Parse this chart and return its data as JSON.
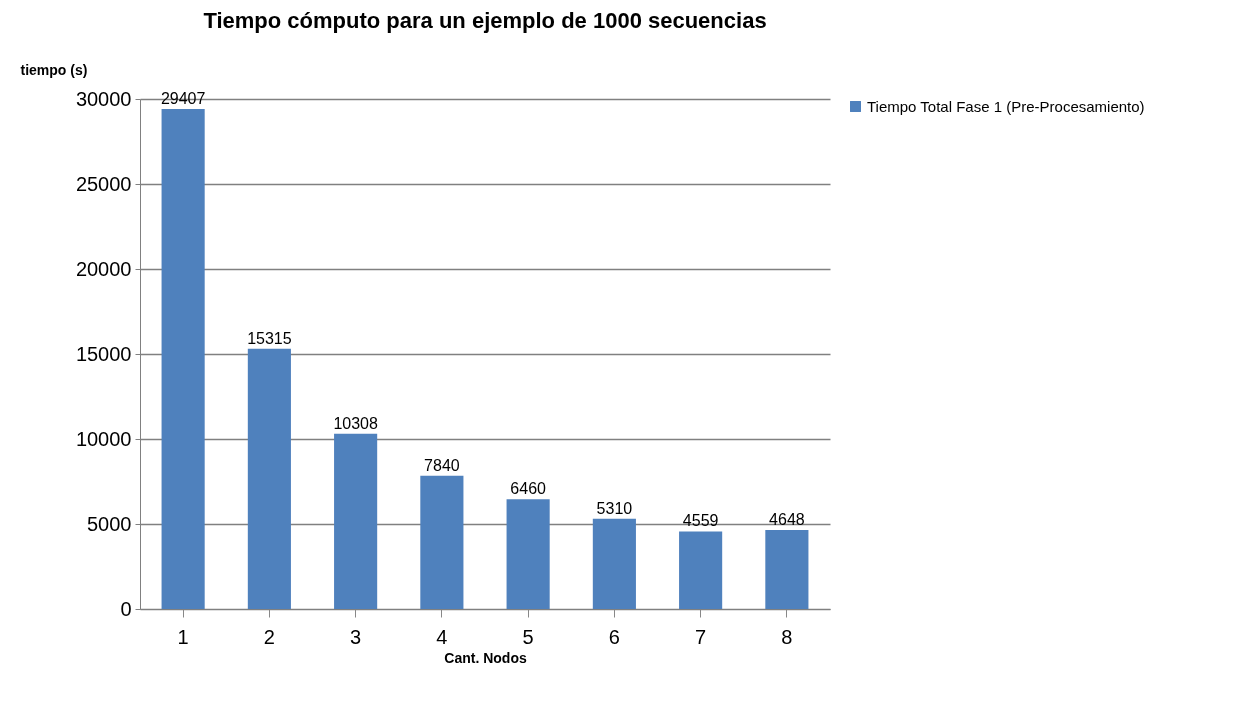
{
  "chart_data": {
    "type": "bar",
    "title": "Tiempo cómputo para un ejemplo de 1000 secuencias",
    "xlabel": "Cant. Nodos",
    "ylabel": "tiempo (s)",
    "categories": [
      "1",
      "2",
      "3",
      "4",
      "5",
      "6",
      "7",
      "8"
    ],
    "series": [
      {
        "name": "Tiempo Total Fase 1 (Pre-Procesamiento)",
        "color": "#4f81bd",
        "values": [
          29407,
          15315,
          10308,
          7840,
          6460,
          5310,
          4559,
          4648
        ]
      }
    ],
    "ylim": [
      0,
      30000
    ],
    "yticks": [
      0,
      5000,
      10000,
      15000,
      20000,
      25000,
      30000
    ],
    "grid": "y",
    "legend": "right",
    "data_labels": true
  }
}
